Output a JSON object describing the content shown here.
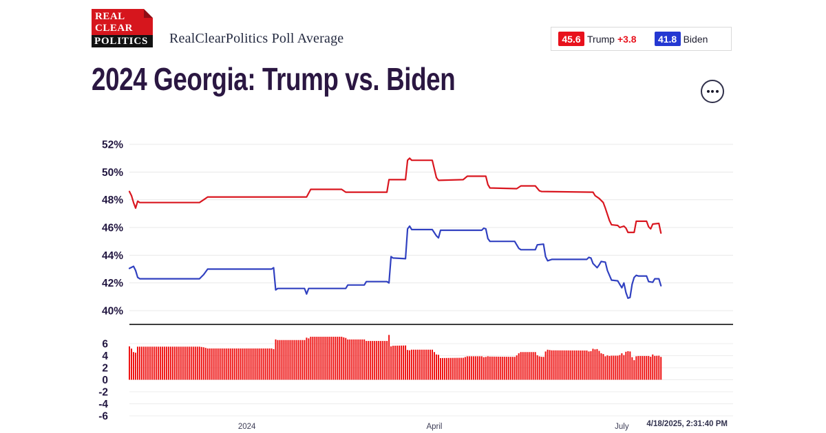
{
  "header": {
    "logo": {
      "line1": "REAL",
      "line2": "CLEAR",
      "line3": "POLITICS"
    },
    "brand": "RealClearPolitics Poll Average"
  },
  "legend": {
    "trump": {
      "value": "45.6",
      "label": "Trump",
      "lead": "+3.8",
      "color": "#e8111c"
    },
    "biden": {
      "value": "41.8",
      "label": "Biden",
      "color": "#2438d2"
    }
  },
  "title": "2024 Georgia: Trump vs. Biden",
  "footer": {
    "timestamp": "4/18/2025, 2:31:40 PM"
  },
  "chart_data": {
    "type": "line",
    "title": "2024 Georgia: Trump vs. Biden",
    "x_unit": "day-index",
    "x_range": [
      0,
      293
    ],
    "x_ticks": [
      {
        "x": 57,
        "label": "2024"
      },
      {
        "x": 148,
        "label": "April"
      },
      {
        "x": 239,
        "label": "July"
      }
    ],
    "main_panel": {
      "ylim": [
        39.4,
        52.6
      ],
      "grid": true,
      "y_ticks": [
        {
          "v": 52,
          "label": "52%"
        },
        {
          "v": 50,
          "label": "50%"
        },
        {
          "v": 48,
          "label": "48%"
        },
        {
          "v": 46,
          "label": "46%"
        },
        {
          "v": 44,
          "label": "44%"
        },
        {
          "v": 42,
          "label": "42%"
        },
        {
          "v": 40,
          "label": "40%"
        }
      ],
      "series": [
        {
          "name": "Trump",
          "color": "#d9161f",
          "final_value": 45.6,
          "points": [
            [
              0,
              48.6
            ],
            [
              1,
              48.3
            ],
            [
              2,
              47.8
            ],
            [
              3,
              47.4
            ],
            [
              4,
              47.9
            ],
            [
              5,
              47.8
            ],
            [
              34,
              47.8
            ],
            [
              36,
              48.0
            ],
            [
              38,
              48.2
            ],
            [
              86,
              48.2
            ],
            [
              88,
              48.75
            ],
            [
              103,
              48.75
            ],
            [
              105,
              48.55
            ],
            [
              125,
              48.55
            ],
            [
              126,
              49.45
            ],
            [
              134,
              49.45
            ],
            [
              135,
              50.85
            ],
            [
              136,
              51.0
            ],
            [
              137,
              50.85
            ],
            [
              147,
              50.85
            ],
            [
              149,
              49.6
            ],
            [
              150,
              49.4
            ],
            [
              162,
              49.45
            ],
            [
              164,
              49.7
            ],
            [
              173,
              49.7
            ],
            [
              174,
              49.1
            ],
            [
              175,
              48.85
            ],
            [
              188,
              48.8
            ],
            [
              190,
              49.0
            ],
            [
              197,
              49.0
            ],
            [
              199,
              48.65
            ],
            [
              200,
              48.6
            ],
            [
              225,
              48.55
            ],
            [
              226,
              48.3
            ],
            [
              228,
              48.1
            ],
            [
              230,
              47.8
            ],
            [
              231,
              47.4
            ],
            [
              233,
              46.5
            ],
            [
              234,
              46.2
            ],
            [
              237,
              46.15
            ],
            [
              238,
              46.0
            ],
            [
              240,
              46.1
            ],
            [
              241,
              45.95
            ],
            [
              242,
              45.65
            ],
            [
              245,
              45.65
            ],
            [
              246,
              46.45
            ],
            [
              251,
              46.45
            ],
            [
              252,
              46.05
            ],
            [
              253,
              45.9
            ],
            [
              254,
              46.25
            ],
            [
              257,
              46.3
            ],
            [
              258,
              45.6
            ]
          ]
        },
        {
          "name": "Biden",
          "color": "#3040c0",
          "final_value": 41.8,
          "points": [
            [
              0,
              43.05
            ],
            [
              2,
              43.2
            ],
            [
              3,
              42.9
            ],
            [
              4,
              42.4
            ],
            [
              5,
              42.3
            ],
            [
              34,
              42.3
            ],
            [
              36,
              42.6
            ],
            [
              38,
              43.0
            ],
            [
              69,
              43.0
            ],
            [
              70,
              43.1
            ],
            [
              71,
              41.5
            ],
            [
              72,
              41.6
            ],
            [
              85,
              41.6
            ],
            [
              86,
              41.2
            ],
            [
              87,
              41.6
            ],
            [
              105,
              41.6
            ],
            [
              106,
              41.85
            ],
            [
              114,
              41.85
            ],
            [
              115,
              42.1
            ],
            [
              125,
              42.1
            ],
            [
              126,
              42.0
            ],
            [
              127,
              43.9
            ],
            [
              128,
              43.8
            ],
            [
              134,
              43.75
            ],
            [
              135,
              45.9
            ],
            [
              136,
              46.1
            ],
            [
              137,
              45.85
            ],
            [
              147,
              45.85
            ],
            [
              149,
              45.4
            ],
            [
              150,
              45.25
            ],
            [
              151,
              45.8
            ],
            [
              171,
              45.8
            ],
            [
              172,
              45.95
            ],
            [
              173,
              45.9
            ],
            [
              174,
              45.2
            ],
            [
              175,
              45.0
            ],
            [
              187,
              45.0
            ],
            [
              189,
              44.5
            ],
            [
              190,
              44.4
            ],
            [
              197,
              44.4
            ],
            [
              198,
              44.75
            ],
            [
              201,
              44.8
            ],
            [
              202,
              43.9
            ],
            [
              203,
              43.6
            ],
            [
              205,
              43.7
            ],
            [
              222,
              43.7
            ],
            [
              223,
              43.85
            ],
            [
              224,
              43.8
            ],
            [
              225,
              43.4
            ],
            [
              227,
              43.1
            ],
            [
              228,
              43.3
            ],
            [
              229,
              43.55
            ],
            [
              231,
              43.5
            ],
            [
              232,
              42.9
            ],
            [
              234,
              42.2
            ],
            [
              237,
              42.15
            ],
            [
              238,
              41.9
            ],
            [
              239,
              41.65
            ],
            [
              240,
              42.0
            ],
            [
              241,
              41.3
            ],
            [
              242,
              40.9
            ],
            [
              243,
              40.95
            ],
            [
              244,
              41.9
            ],
            [
              245,
              42.4
            ],
            [
              246,
              42.55
            ],
            [
              247,
              42.5
            ],
            [
              251,
              42.5
            ],
            [
              252,
              42.1
            ],
            [
              254,
              42.05
            ],
            [
              255,
              42.3
            ],
            [
              257,
              42.3
            ],
            [
              258,
              41.8
            ]
          ]
        }
      ]
    },
    "spread_panel": {
      "type": "bar",
      "derived": "trump_minus_biden",
      "color": "#ee1111",
      "ylim": [
        -7,
        7
      ],
      "y_ticks": [
        {
          "v": 6,
          "label": "6"
        },
        {
          "v": 4,
          "label": "4"
        },
        {
          "v": 2,
          "label": "2"
        },
        {
          "v": 0,
          "label": "0"
        },
        {
          "v": -2,
          "label": "-2"
        },
        {
          "v": -4,
          "label": "-4"
        },
        {
          "v": -6,
          "label": "-6"
        }
      ]
    }
  }
}
